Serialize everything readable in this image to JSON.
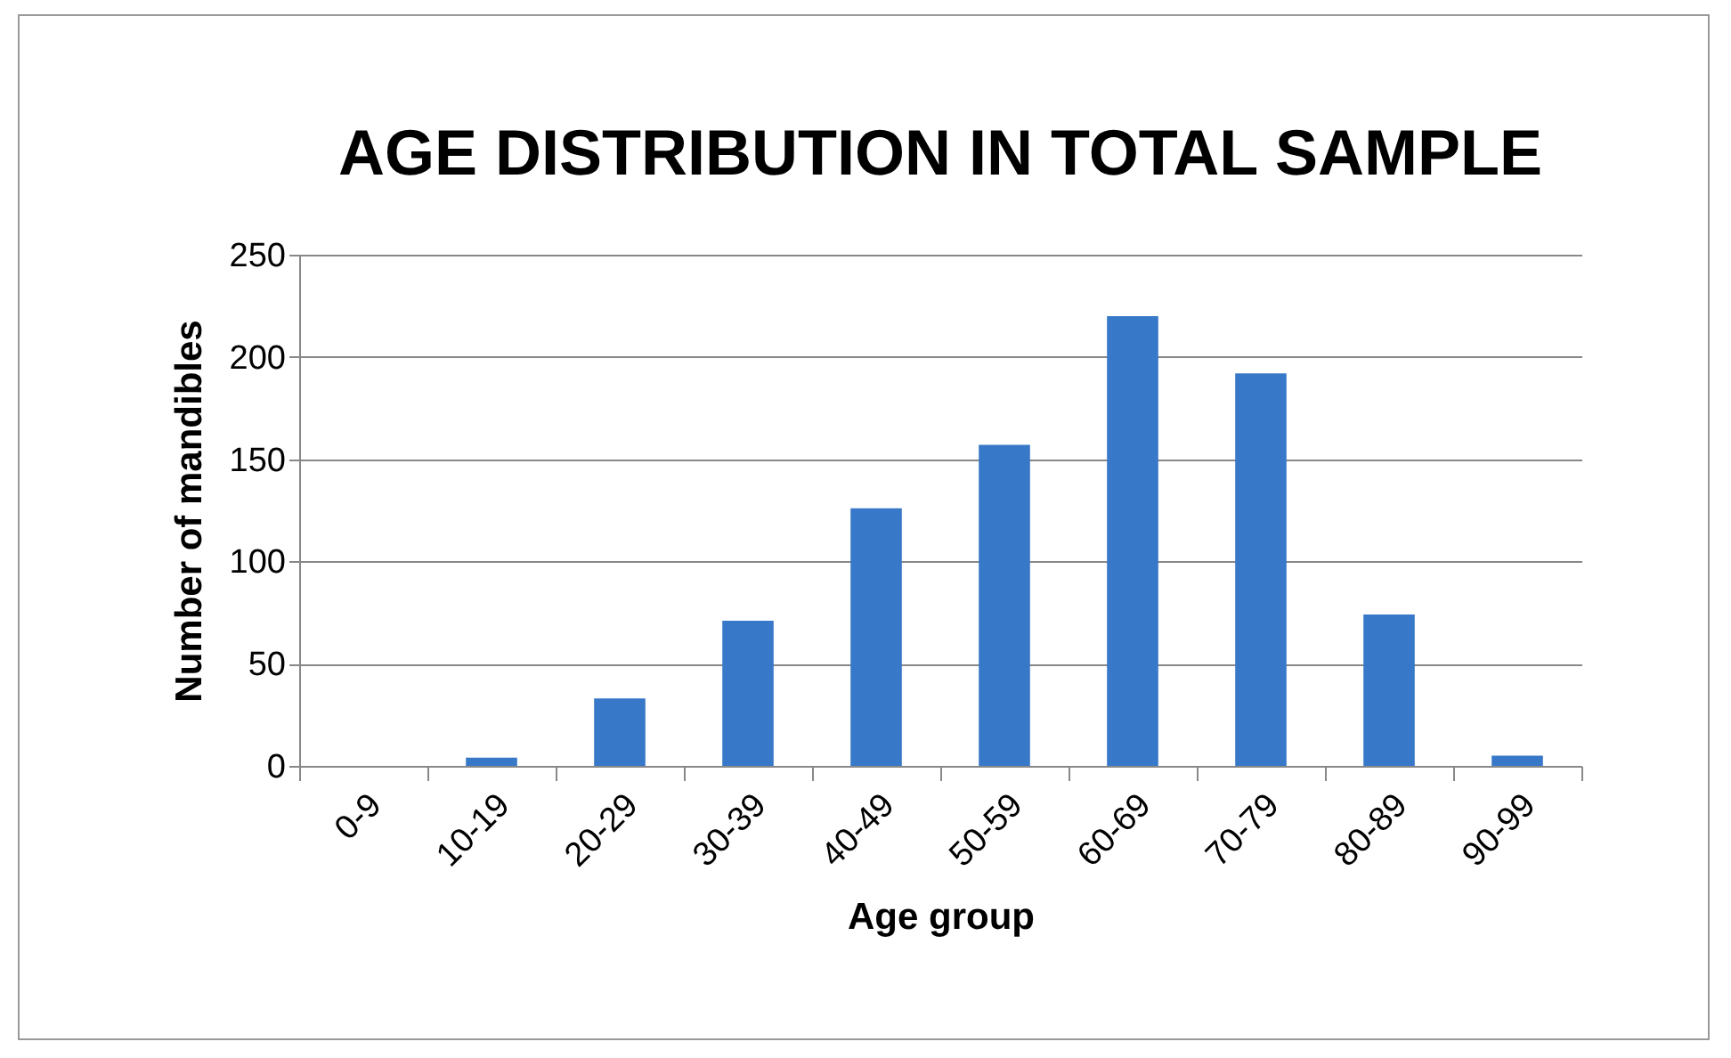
{
  "chart_data": {
    "type": "bar",
    "title": "AGE DISTRIBUTION IN TOTAL SAMPLE",
    "xlabel": "Age group",
    "ylabel": "Number of mandibles",
    "categories": [
      "0-9",
      "10-19",
      "20-29",
      "30-39",
      "40-49",
      "50-59",
      "60-69",
      "70-79",
      "80-89",
      "90-99"
    ],
    "values": [
      0,
      4,
      33,
      71,
      126,
      157,
      220,
      192,
      74,
      5
    ],
    "color": "#3878c8",
    "ylim": [
      0,
      250
    ],
    "yticks": [
      0,
      50,
      100,
      150,
      200,
      250
    ],
    "grid": "y"
  }
}
